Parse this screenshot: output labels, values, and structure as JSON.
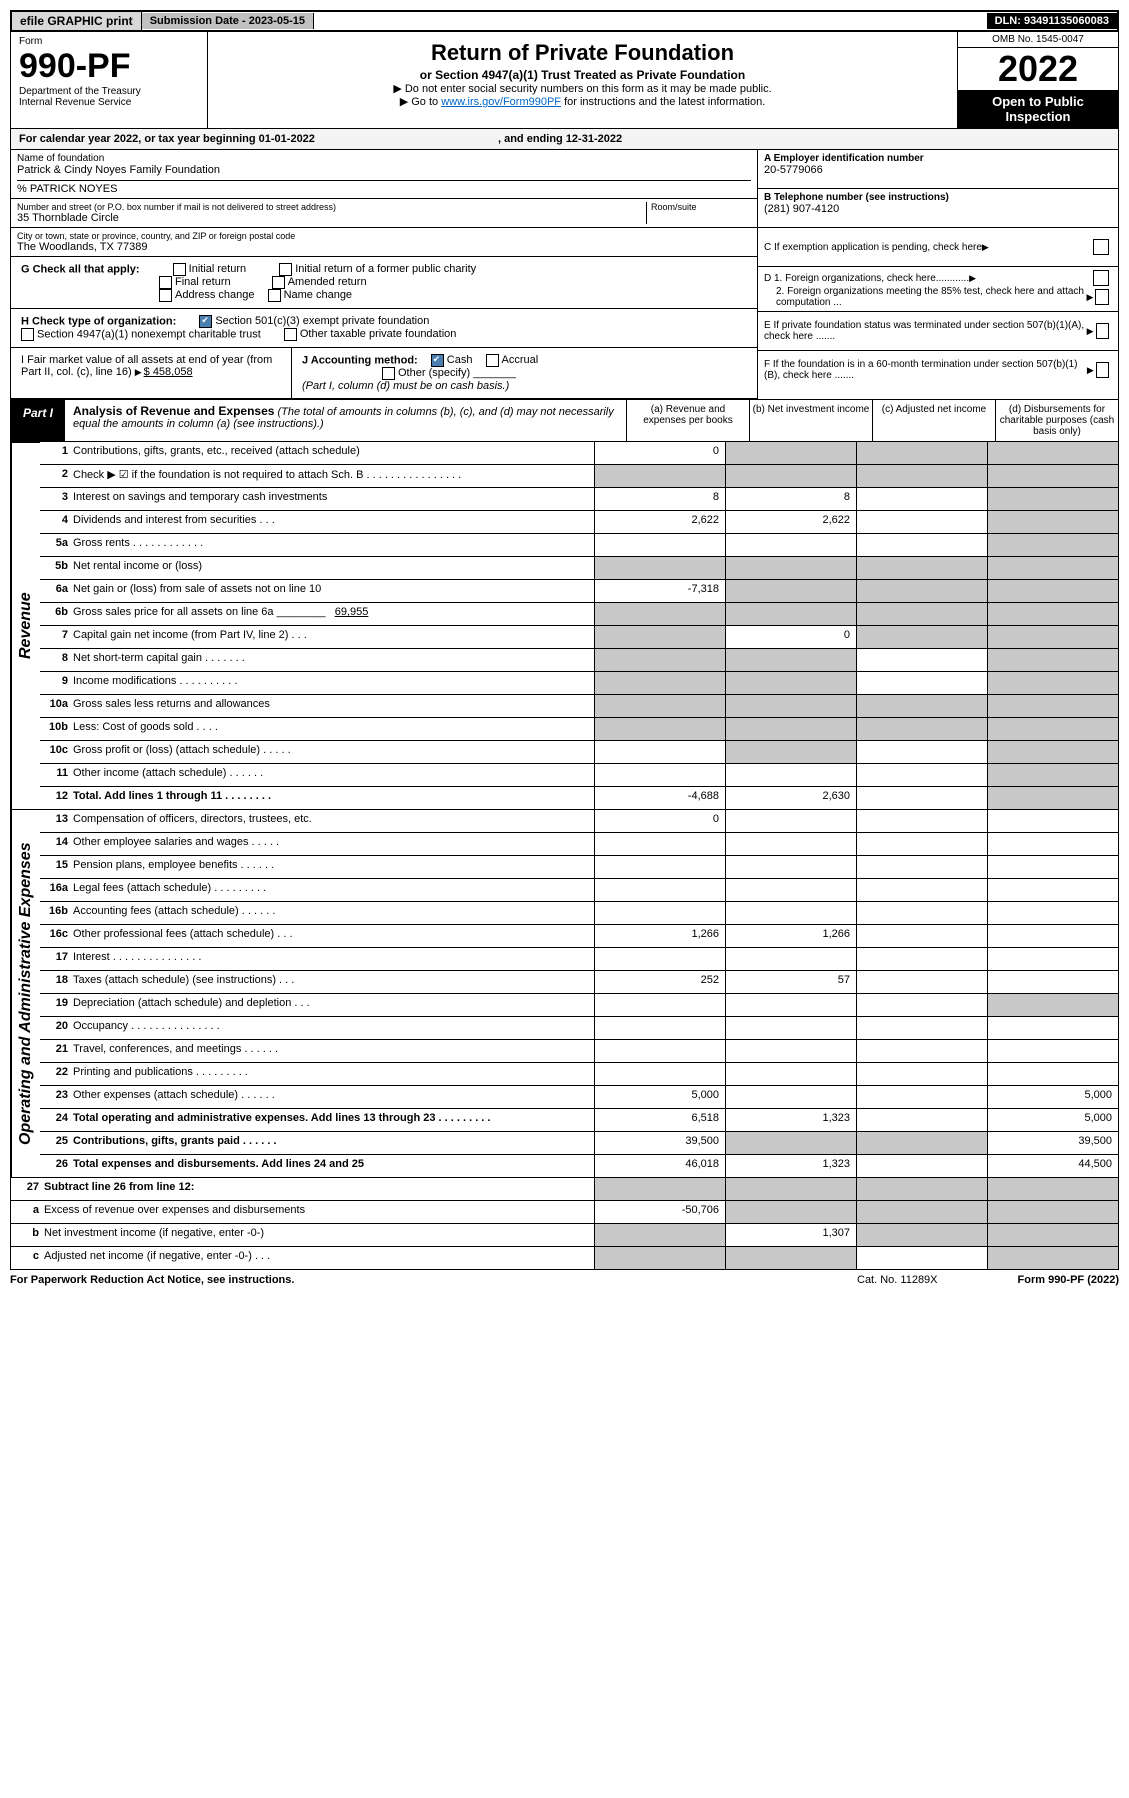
{
  "topbar": {
    "efile": "efile GRAPHIC print",
    "subm_label": "Submission Date - 2023-05-15",
    "dln": "DLN: 93491135060083"
  },
  "header": {
    "form_word": "Form",
    "form_no": "990-PF",
    "dept": "Department of the Treasury",
    "irs": "Internal Revenue Service",
    "title": "Return of Private Foundation",
    "sub": "or Section 4947(a)(1) Trust Treated as Private Foundation",
    "note1": "▶ Do not enter social security numbers on this form as it may be made public.",
    "note2_pre": "▶ Go to ",
    "note2_link": "www.irs.gov/Form990PF",
    "note2_post": " for instructions and the latest information.",
    "omb": "OMB No. 1545-0047",
    "year": "2022",
    "open": "Open to Public Inspection"
  },
  "calyear": "For calendar year 2022, or tax year beginning 01-01-2022",
  "calyear_end": ", and ending 12-31-2022",
  "name_lbl": "Name of foundation",
  "name_val": "Patrick & Cindy Noyes Family Foundation",
  "careof": "% PATRICK NOYES",
  "addr_lbl": "Number and street (or P.O. box number if mail is not delivered to street address)",
  "addr_val": "35 Thornblade Circle",
  "room_lbl": "Room/suite",
  "city_lbl": "City or town, state or province, country, and ZIP or foreign postal code",
  "city_val": "The Woodlands, TX  77389",
  "boxA_lbl": "A Employer identification number",
  "boxA_val": "20-5779066",
  "boxB_lbl": "B Telephone number (see instructions)",
  "boxB_val": "(281) 907-4120",
  "boxC": "C If exemption application is pending, check here",
  "boxD1": "D 1. Foreign organizations, check here............",
  "boxD2": "2. Foreign organizations meeting the 85% test, check here and attach computation ...",
  "boxE": "E  If private foundation status was terminated under section 507(b)(1)(A), check here .......",
  "boxF": "F  If the foundation is in a 60-month termination under section 507(b)(1)(B), check here .......",
  "G_lbl": "G Check all that apply:",
  "G_opts": [
    "Initial return",
    "Final return",
    "Address change",
    "Initial return of a former public charity",
    "Amended return",
    "Name change"
  ],
  "H_lbl": "H Check type of organization:",
  "H1": "Section 501(c)(3) exempt private foundation",
  "H2": "Section 4947(a)(1) nonexempt charitable trust",
  "H3": "Other taxable private foundation",
  "I_lbl": "I Fair market value of all assets at end of year (from Part II, col. (c), line 16)",
  "I_val": "$  458,058",
  "J_lbl": "J Accounting method:",
  "J_cash": "Cash",
  "J_accr": "Accrual",
  "J_other": "Other (specify)",
  "J_note": "(Part I, column (d) must be on cash basis.)",
  "partI": {
    "num": "Part I",
    "title": "Analysis of Revenue and Expenses",
    "note": "(The total of amounts in columns (b), (c), and (d) may not necessarily equal the amounts in column (a) (see instructions).)",
    "cols": [
      "(a)  Revenue and expenses per books",
      "(b)  Net investment income",
      "(c)  Adjusted net income",
      "(d)  Disbursements for charitable purposes (cash basis only)"
    ]
  },
  "side_rev": "Revenue",
  "side_exp": "Operating and Administrative Expenses",
  "lines": {
    "1": {
      "d": "Contributions, gifts, grants, etc., received (attach schedule)",
      "a": "0"
    },
    "2": {
      "d": "Check ▶ ☑ if the foundation is not required to attach Sch. B   .  .  .  .  .  .  .  .  .  .  .  .  .  .  .  ."
    },
    "3": {
      "d": "Interest on savings and temporary cash investments",
      "a": "8",
      "b": "8"
    },
    "4": {
      "d": "Dividends and interest from securities   .  .  .",
      "a": "2,622",
      "b": "2,622"
    },
    "5a": {
      "d": "Gross rents   .  .  .  .  .  .  .  .  .  .  .  ."
    },
    "5b": {
      "d": "Net rental income or (loss)  "
    },
    "6a": {
      "d": "Net gain or (loss) from sale of assets not on line 10",
      "a": "-7,318"
    },
    "6b": {
      "d": "Gross sales price for all assets on line 6a ________",
      "v": "69,955"
    },
    "7": {
      "d": "Capital gain net income (from Part IV, line 2)   .  .  .",
      "b": "0"
    },
    "8": {
      "d": "Net short-term capital gain   .  .  .  .  .  .  ."
    },
    "9": {
      "d": "Income modifications  .  .  .  .  .  .  .  .  .  ."
    },
    "10a": {
      "d": "Gross sales less returns and allowances"
    },
    "10b": {
      "d": "Less: Cost of goods sold   .  .  .  ."
    },
    "10c": {
      "d": "Gross profit or (loss) (attach schedule)   .  .  .  .  ."
    },
    "11": {
      "d": "Other income (attach schedule)   .  .  .  .  .  ."
    },
    "12": {
      "d": "Total. Add lines 1 through 11   .  .  .  .  .  .  .  .",
      "a": "-4,688",
      "b": "2,630"
    },
    "13": {
      "d": "Compensation of officers, directors, trustees, etc.",
      "a": "0"
    },
    "14": {
      "d": "Other employee salaries and wages   .  .  .  .  ."
    },
    "15": {
      "d": "Pension plans, employee benefits  .  .  .  .  .  ."
    },
    "16a": {
      "d": "Legal fees (attach schedule)  .  .  .  .  .  .  .  .  ."
    },
    "16b": {
      "d": "Accounting fees (attach schedule)  .  .  .  .  .  ."
    },
    "16c": {
      "d": "Other professional fees (attach schedule)   .  .  .",
      "a": "1,266",
      "b": "1,266"
    },
    "17": {
      "d": "Interest  .  .  .  .  .  .  .  .  .  .  .  .  .  .  ."
    },
    "18": {
      "d": "Taxes (attach schedule) (see instructions)   .  .  .",
      "a": "252",
      "b": "57"
    },
    "19": {
      "d": "Depreciation (attach schedule) and depletion   .  .  ."
    },
    "20": {
      "d": "Occupancy  .  .  .  .  .  .  .  .  .  .  .  .  .  .  ."
    },
    "21": {
      "d": "Travel, conferences, and meetings  .  .  .  .  .  ."
    },
    "22": {
      "d": "Printing and publications  .  .  .  .  .  .  .  .  ."
    },
    "23": {
      "d": "Other expenses (attach schedule)  .  .  .  .  .  .",
      "a": "5,000",
      "dd": "5,000"
    },
    "24": {
      "d": "Total operating and administrative expenses. Add lines 13 through 23   .  .  .  .  .  .  .  .  .",
      "a": "6,518",
      "b": "1,323",
      "dd": "5,000"
    },
    "25": {
      "d": "Contributions, gifts, grants paid   .  .  .  .  .  .",
      "a": "39,500",
      "dd": "39,500"
    },
    "26": {
      "d": "Total expenses and disbursements. Add lines 24 and 25",
      "a": "46,018",
      "b": "1,323",
      "dd": "44,500"
    },
    "27": {
      "d": "Subtract line 26 from line 12:"
    },
    "27a": {
      "d": "Excess of revenue over expenses and disbursements",
      "a": "-50,706"
    },
    "27b": {
      "d": "Net investment income (if negative, enter -0-)",
      "b": "1,307"
    },
    "27c": {
      "d": "Adjusted net income (if negative, enter -0-)   .  .  ."
    }
  },
  "foot": {
    "left": "For Paperwork Reduction Act Notice, see instructions.",
    "mid": "Cat. No. 11289X",
    "right": "Form 990-PF (2022)"
  },
  "colors": {
    "greybg": "#c8c8c8",
    "link": "#0066cc",
    "black": "#000000"
  }
}
